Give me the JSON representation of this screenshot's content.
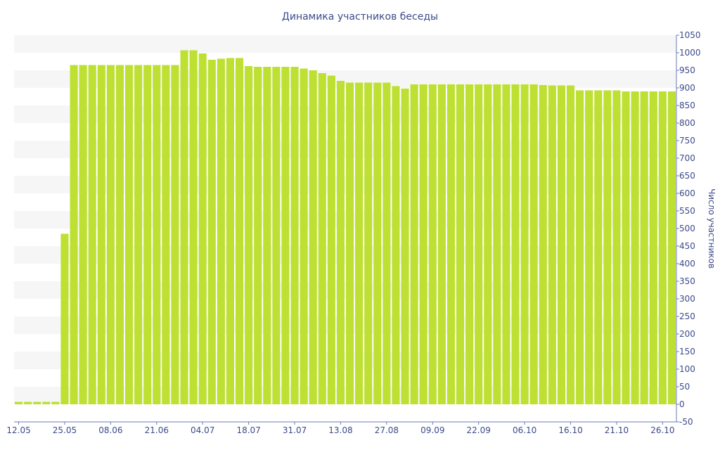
{
  "chart_data": {
    "type": "bar",
    "title": "Динамика участников беседы",
    "ylabel": "Число участников",
    "xlabel": "",
    "ylim": [
      -50,
      1050
    ],
    "y_ticks": [
      "1050",
      "1000",
      "950",
      "900",
      "850",
      "800",
      "750",
      "700",
      "650",
      "600",
      "550",
      "500",
      "450",
      "400",
      "350",
      "300",
      "250",
      "200",
      "150",
      "100",
      "50",
      "0",
      "-50"
    ],
    "x_tick_labels": [
      {
        "label": "12.05",
        "index": 0
      },
      {
        "label": "25.05",
        "index": 5
      },
      {
        "label": "08.06",
        "index": 10
      },
      {
        "label": "21.06",
        "index": 15
      },
      {
        "label": "04.07",
        "index": 20
      },
      {
        "label": "18.07",
        "index": 25
      },
      {
        "label": "31.07",
        "index": 30
      },
      {
        "label": "13.08",
        "index": 35
      },
      {
        "label": "27.08",
        "index": 40
      },
      {
        "label": "09.09",
        "index": 45
      },
      {
        "label": "22.09",
        "index": 50
      },
      {
        "label": "06.10",
        "index": 55
      },
      {
        "label": "16.10",
        "index": 60
      },
      {
        "label": "21.10",
        "index": 65
      },
      {
        "label": "26.10",
        "index": 70
      }
    ],
    "bar_color": "#bde032",
    "grid": "horizontal bands",
    "values": [
      7,
      7,
      7,
      7,
      7,
      485,
      965,
      965,
      965,
      965,
      965,
      965,
      965,
      965,
      965,
      965,
      965,
      965,
      1007,
      1007,
      998,
      980,
      983,
      985,
      985,
      962,
      960,
      960,
      960,
      960,
      960,
      955,
      950,
      942,
      935,
      920,
      915,
      915,
      915,
      915,
      915,
      905,
      898,
      910,
      910,
      910,
      910,
      910,
      910,
      910,
      910,
      910,
      910,
      910,
      910,
      910,
      910,
      908,
      907,
      907,
      907,
      893,
      893,
      893,
      893,
      893,
      890,
      890,
      890,
      890,
      890,
      890
    ]
  }
}
